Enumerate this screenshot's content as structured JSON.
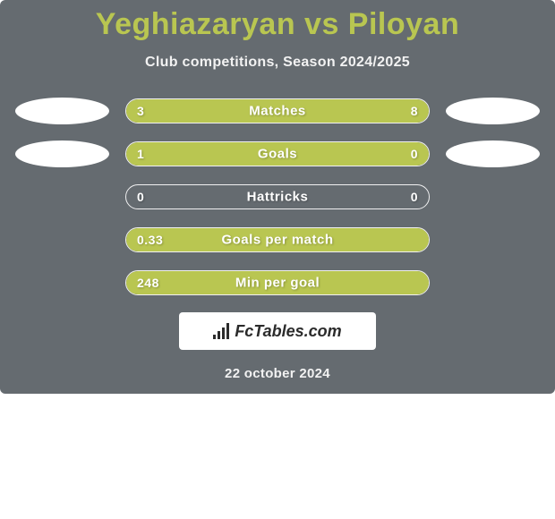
{
  "colors": {
    "card_bg": "#656b70",
    "title": "#b9c651",
    "subtitle": "#f2f2f2",
    "bar_fill": "#b9c651",
    "bar_border": "rgba(255,255,255,0.9)",
    "text_on_bar": "#ffffff",
    "date": "#f2f2f2",
    "branding_text": "#2b2b2b"
  },
  "title": "Yeghiazaryan vs Piloyan",
  "subtitle": "Club competitions, Season 2024/2025",
  "date": "22 october 2024",
  "branding": "FcTables.com",
  "rows": [
    {
      "label": "Matches",
      "left": "3",
      "right": "8",
      "leftPct": 26,
      "rightPct": 74,
      "showBadges": true
    },
    {
      "label": "Goals",
      "left": "1",
      "right": "0",
      "leftPct": 80,
      "rightPct": 20,
      "showBadges": true
    },
    {
      "label": "Hattricks",
      "left": "0",
      "right": "0",
      "leftPct": 0,
      "rightPct": 0,
      "showBadges": false
    },
    {
      "label": "Goals per match",
      "left": "0.33",
      "right": "",
      "leftPct": 100,
      "rightPct": 0,
      "showBadges": false
    },
    {
      "label": "Min per goal",
      "left": "248",
      "right": "",
      "leftPct": 100,
      "rightPct": 0,
      "showBadges": false
    }
  ]
}
